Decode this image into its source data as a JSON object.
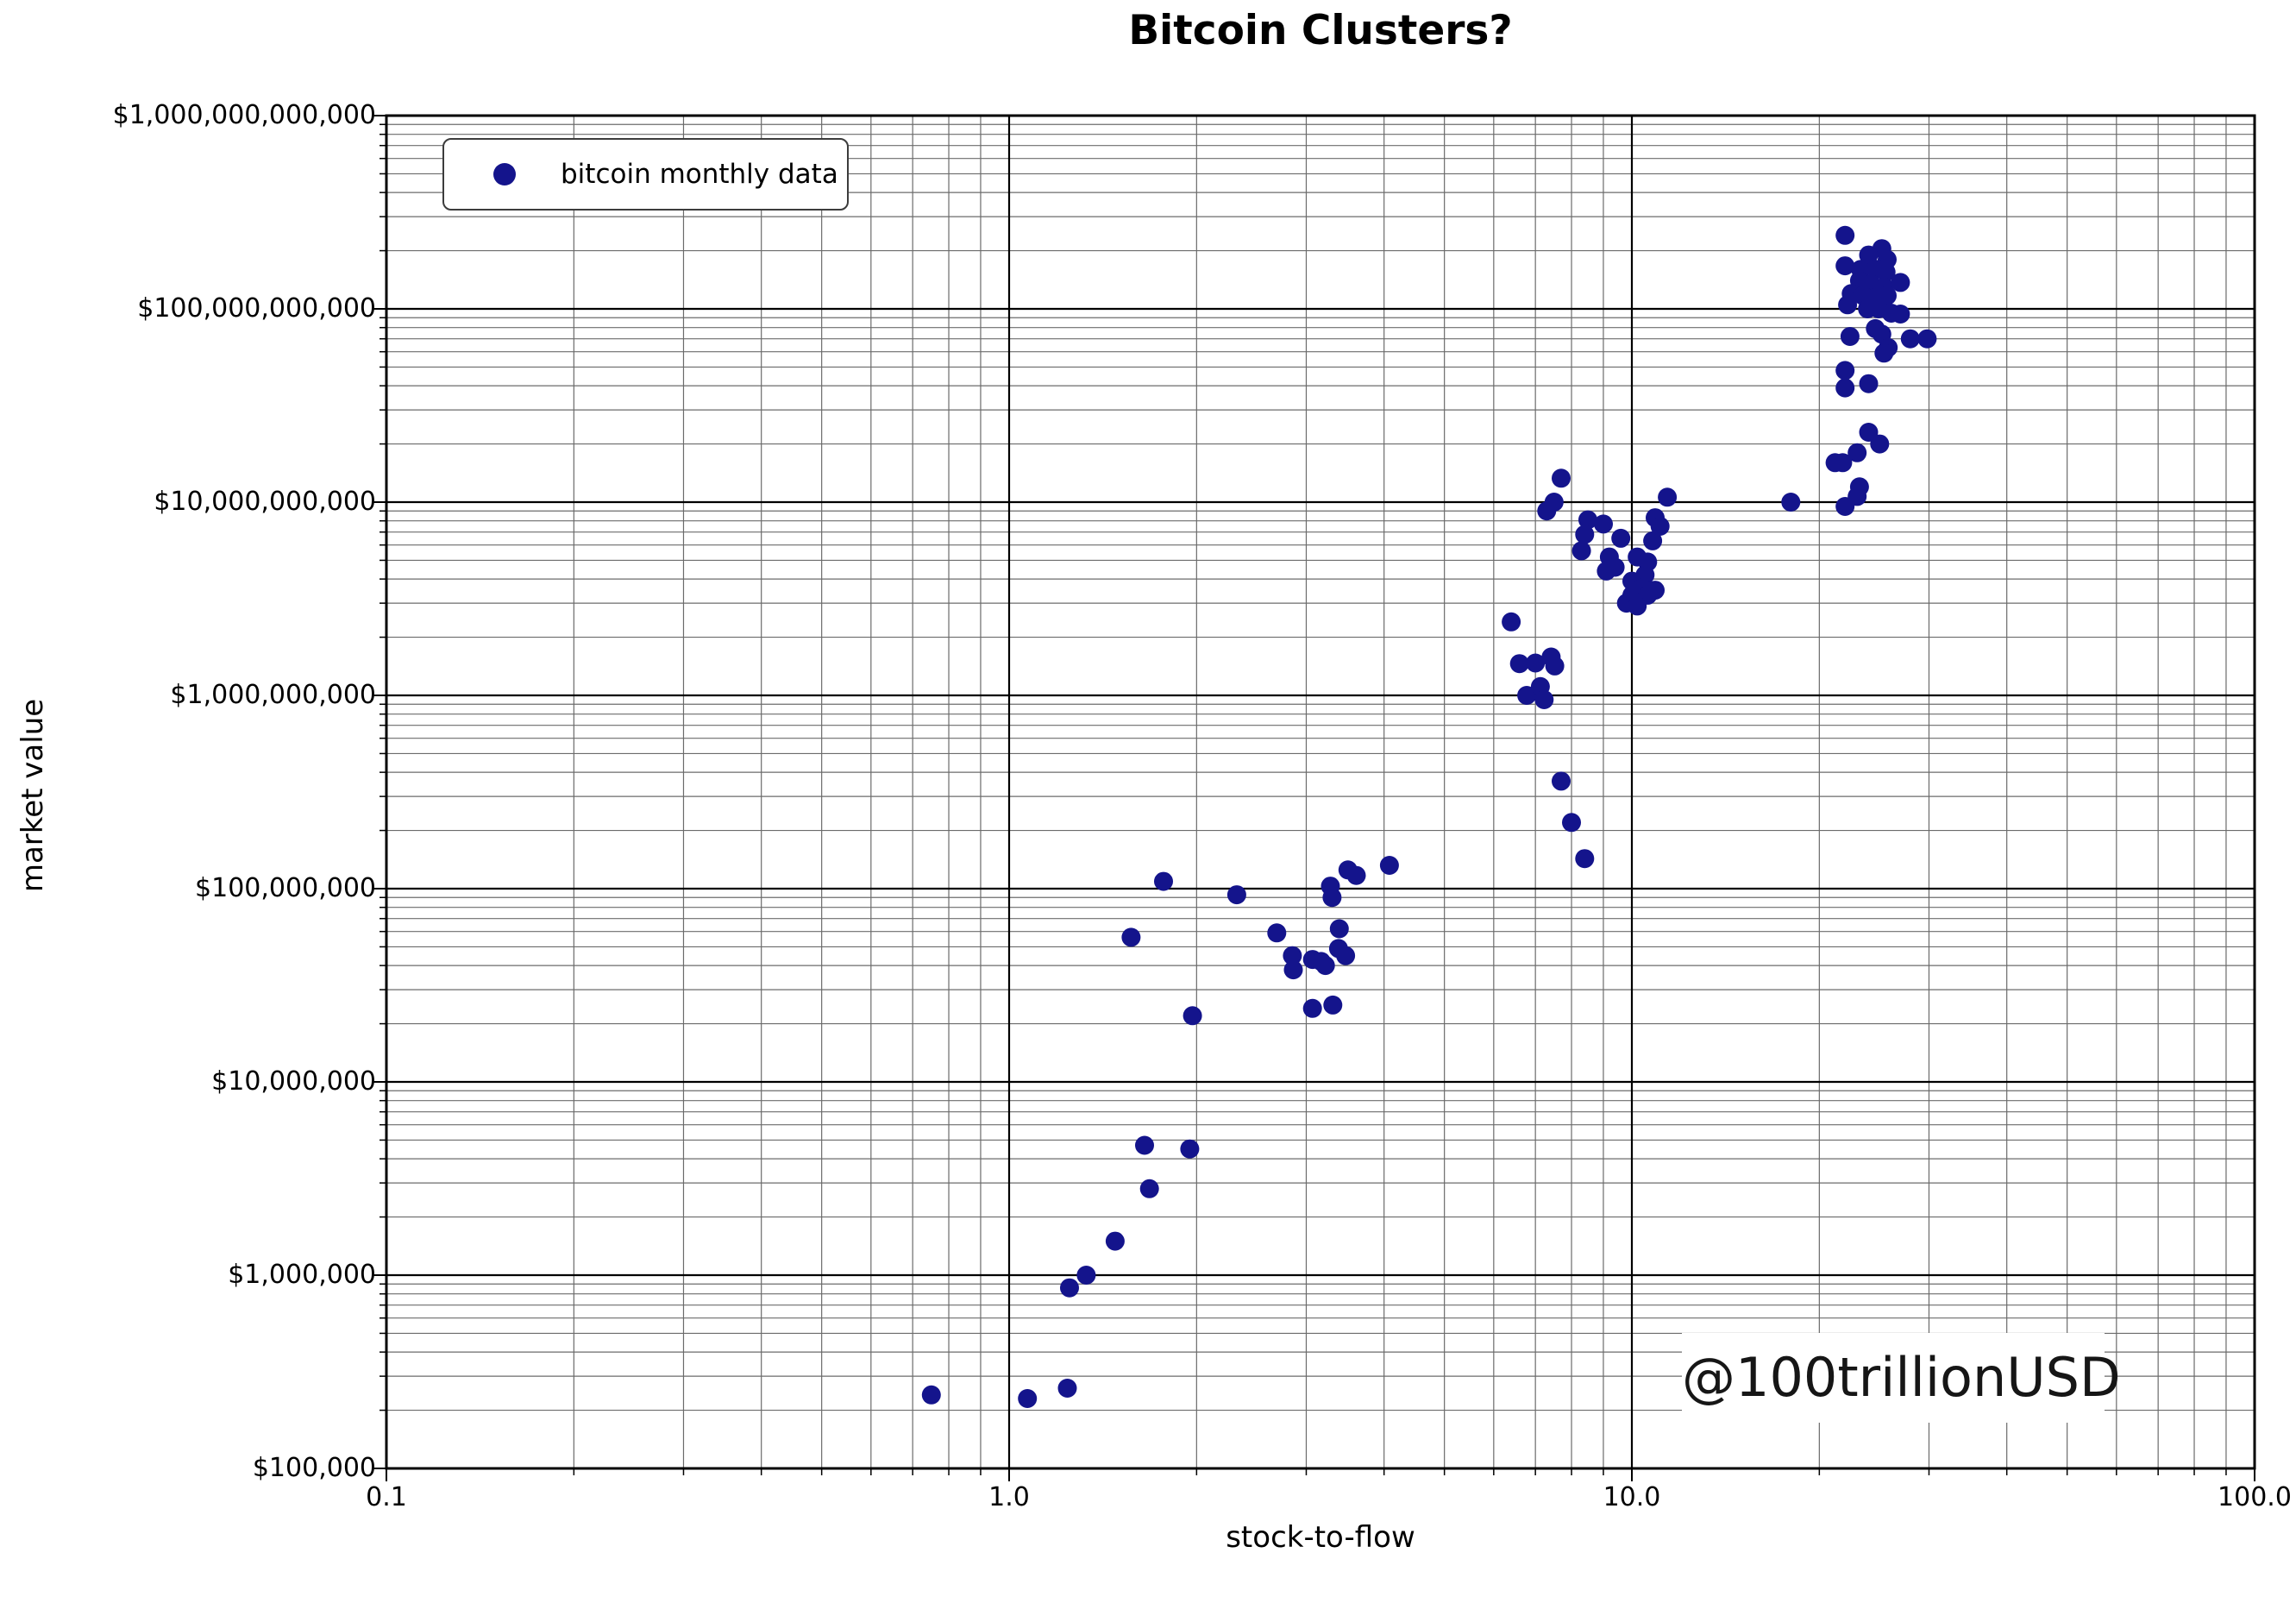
{
  "title": "Bitcoin Clusters?",
  "legend": {
    "label": "bitcoin monthly data",
    "marker": "filled-circle"
  },
  "watermark": "@100trillionUSD",
  "colors": {
    "point": "#14148c",
    "grid_minor": "#6b6b6b",
    "grid_major": "#000000",
    "spine": "#000000",
    "background": "#ffffff",
    "watermark_text": "#161616"
  },
  "axes": {
    "x": {
      "label": "stock-to-flow",
      "scale": "log",
      "min": 0.1,
      "max": 100,
      "ticks": [
        {
          "v": 0.1,
          "label": "0.1"
        },
        {
          "v": 1.0,
          "label": "1.0"
        },
        {
          "v": 10.0,
          "label": "10.0"
        },
        {
          "v": 100.0,
          "label": "100.0"
        }
      ]
    },
    "y": {
      "label": "market value",
      "scale": "log",
      "min": 100000,
      "max": 1000000000000,
      "ticks": [
        {
          "v": 1000000000000.0,
          "label": "$1,000,000,000,000"
        },
        {
          "v": 100000000000.0,
          "label": "$100,000,000,000"
        },
        {
          "v": 10000000000.0,
          "label": "$10,000,000,000"
        },
        {
          "v": 1000000000.0,
          "label": "$1,000,000,000"
        },
        {
          "v": 100000000.0,
          "label": "$100,000,000"
        },
        {
          "v": 10000000.0,
          "label": "$10,000,000"
        },
        {
          "v": 1000000.0,
          "label": "$1,000,000"
        },
        {
          "v": 100000.0,
          "label": "$100,000"
        }
      ]
    }
  },
  "chart_data": {
    "type": "scatter",
    "title": "Bitcoin Clusters?",
    "xlabel": "stock-to-flow",
    "ylabel": "market value",
    "x_scale": "log",
    "y_scale": "log",
    "xlim": [
      0.1,
      100
    ],
    "ylim": [
      100000,
      1000000000000
    ],
    "grid": "both-major-and-minor",
    "legend_position": "upper-left",
    "series": [
      {
        "name": "bitcoin monthly data",
        "marker": "circle",
        "color": "#14148c",
        "points": [
          [
            0.75,
            240000.0
          ],
          [
            1.07,
            230000.0
          ],
          [
            1.24,
            260000.0
          ],
          [
            1.25,
            860000.0
          ],
          [
            1.33,
            1000000.0
          ],
          [
            1.48,
            1500000.0
          ],
          [
            1.68,
            2800000.0
          ],
          [
            1.65,
            4700000.0
          ],
          [
            1.95,
            4500000.0
          ],
          [
            1.97,
            22000000.0
          ],
          [
            1.57,
            56000000.0
          ],
          [
            1.77,
            109000000.0
          ],
          [
            2.32,
            93000000.0
          ],
          [
            2.69,
            59000000.0
          ],
          [
            2.85,
            45000000.0
          ],
          [
            2.86,
            38000000.0
          ],
          [
            3.07,
            43000000.0
          ],
          [
            3.17,
            42000000.0
          ],
          [
            3.22,
            40000000.0
          ],
          [
            3.38,
            49000000.0
          ],
          [
            3.47,
            45000000.0
          ],
          [
            3.39,
            62000000.0
          ],
          [
            3.28,
            103000000.0
          ],
          [
            3.3,
            90000000.0
          ],
          [
            3.5,
            125000000.0
          ],
          [
            3.61,
            117000000.0
          ],
          [
            4.08,
            132000000.0
          ],
          [
            3.07,
            24000000.0
          ],
          [
            3.31,
            25000000.0
          ],
          [
            6.4,
            2400000000.0
          ],
          [
            6.6,
            1460000000.0
          ],
          [
            7.0,
            1470000000.0
          ],
          [
            7.42,
            1580000000.0
          ],
          [
            7.52,
            1420000000.0
          ],
          [
            6.78,
            1000000000.0
          ],
          [
            7.13,
            1110000000.0
          ],
          [
            7.23,
            950000000.0
          ],
          [
            7.7,
            360000000.0
          ],
          [
            8.0,
            220000000.0
          ],
          [
            8.4,
            143000000.0
          ],
          [
            7.3,
            9000000000.0
          ],
          [
            7.5,
            10000000000.0
          ],
          [
            7.7,
            13300000000.0
          ],
          [
            8.5,
            8100000000.0
          ],
          [
            8.4,
            6800000000.0
          ],
          [
            8.3,
            5600000000.0
          ],
          [
            9.0,
            7700000000.0
          ],
          [
            9.6,
            6500000000.0
          ],
          [
            9.2,
            5200000000.0
          ],
          [
            9.4,
            4600000000.0
          ],
          [
            9.1,
            4400000000.0
          ],
          [
            10.2,
            5200000000.0
          ],
          [
            10.6,
            4900000000.0
          ],
          [
            10.5,
            4200000000.0
          ],
          [
            10.0,
            3900000000.0
          ],
          [
            10.4,
            3600000000.0
          ],
          [
            10.0,
            3300000000.0
          ],
          [
            10.6,
            3300000000.0
          ],
          [
            10.9,
            3500000000.0
          ],
          [
            9.8,
            3000000000.0
          ],
          [
            10.2,
            2900000000.0
          ],
          [
            10.9,
            8300000000.0
          ],
          [
            11.1,
            7500000000.0
          ],
          [
            10.8,
            6300000000.0
          ],
          [
            11.4,
            10600000000.0
          ],
          [
            18.0,
            10000000000.0
          ],
          [
            22.0,
            240000000000.0
          ],
          [
            22.0,
            167000000000.0
          ],
          [
            25.2,
            205000000000.0
          ],
          [
            24.0,
            190000000000.0
          ],
          [
            25.7,
            180000000000.0
          ],
          [
            23.3,
            160000000000.0
          ],
          [
            24.7,
            160000000000.0
          ],
          [
            25.6,
            155000000000.0
          ],
          [
            23.2,
            140000000000.0
          ],
          [
            24.2,
            135000000000.0
          ],
          [
            25.4,
            130000000000.0
          ],
          [
            27.0,
            137000000000.0
          ],
          [
            22.5,
            120000000000.0
          ],
          [
            23.5,
            117000000000.0
          ],
          [
            24.7,
            115000000000.0
          ],
          [
            25.7,
            117000000000.0
          ],
          [
            22.2,
            105000000000.0
          ],
          [
            23.9,
            100000000000.0
          ],
          [
            24.9,
            100000000000.0
          ],
          [
            26.1,
            95000000000.0
          ],
          [
            27.0,
            94000000000.0
          ],
          [
            24.6,
            79000000000.0
          ],
          [
            25.2,
            74000000000.0
          ],
          [
            25.8,
            63000000000.0
          ],
          [
            25.4,
            59000000000.0
          ],
          [
            28.0,
            70000000000.0
          ],
          [
            29.8,
            70000000000.0
          ],
          [
            22.4,
            72000000000.0
          ],
          [
            22.0,
            48000000000.0
          ],
          [
            22.0,
            39000000000.0
          ],
          [
            24.0,
            41000000000.0
          ],
          [
            24.0,
            23000000000.0
          ],
          [
            25.0,
            20000000000.0
          ],
          [
            23.0,
            18000000000.0
          ],
          [
            21.8,
            16000000000.0
          ],
          [
            21.2,
            16000000000.0
          ],
          [
            23.2,
            12000000000.0
          ],
          [
            23.0,
            10700000000.0
          ],
          [
            22.0,
            9500000000.0
          ]
        ]
      }
    ]
  }
}
